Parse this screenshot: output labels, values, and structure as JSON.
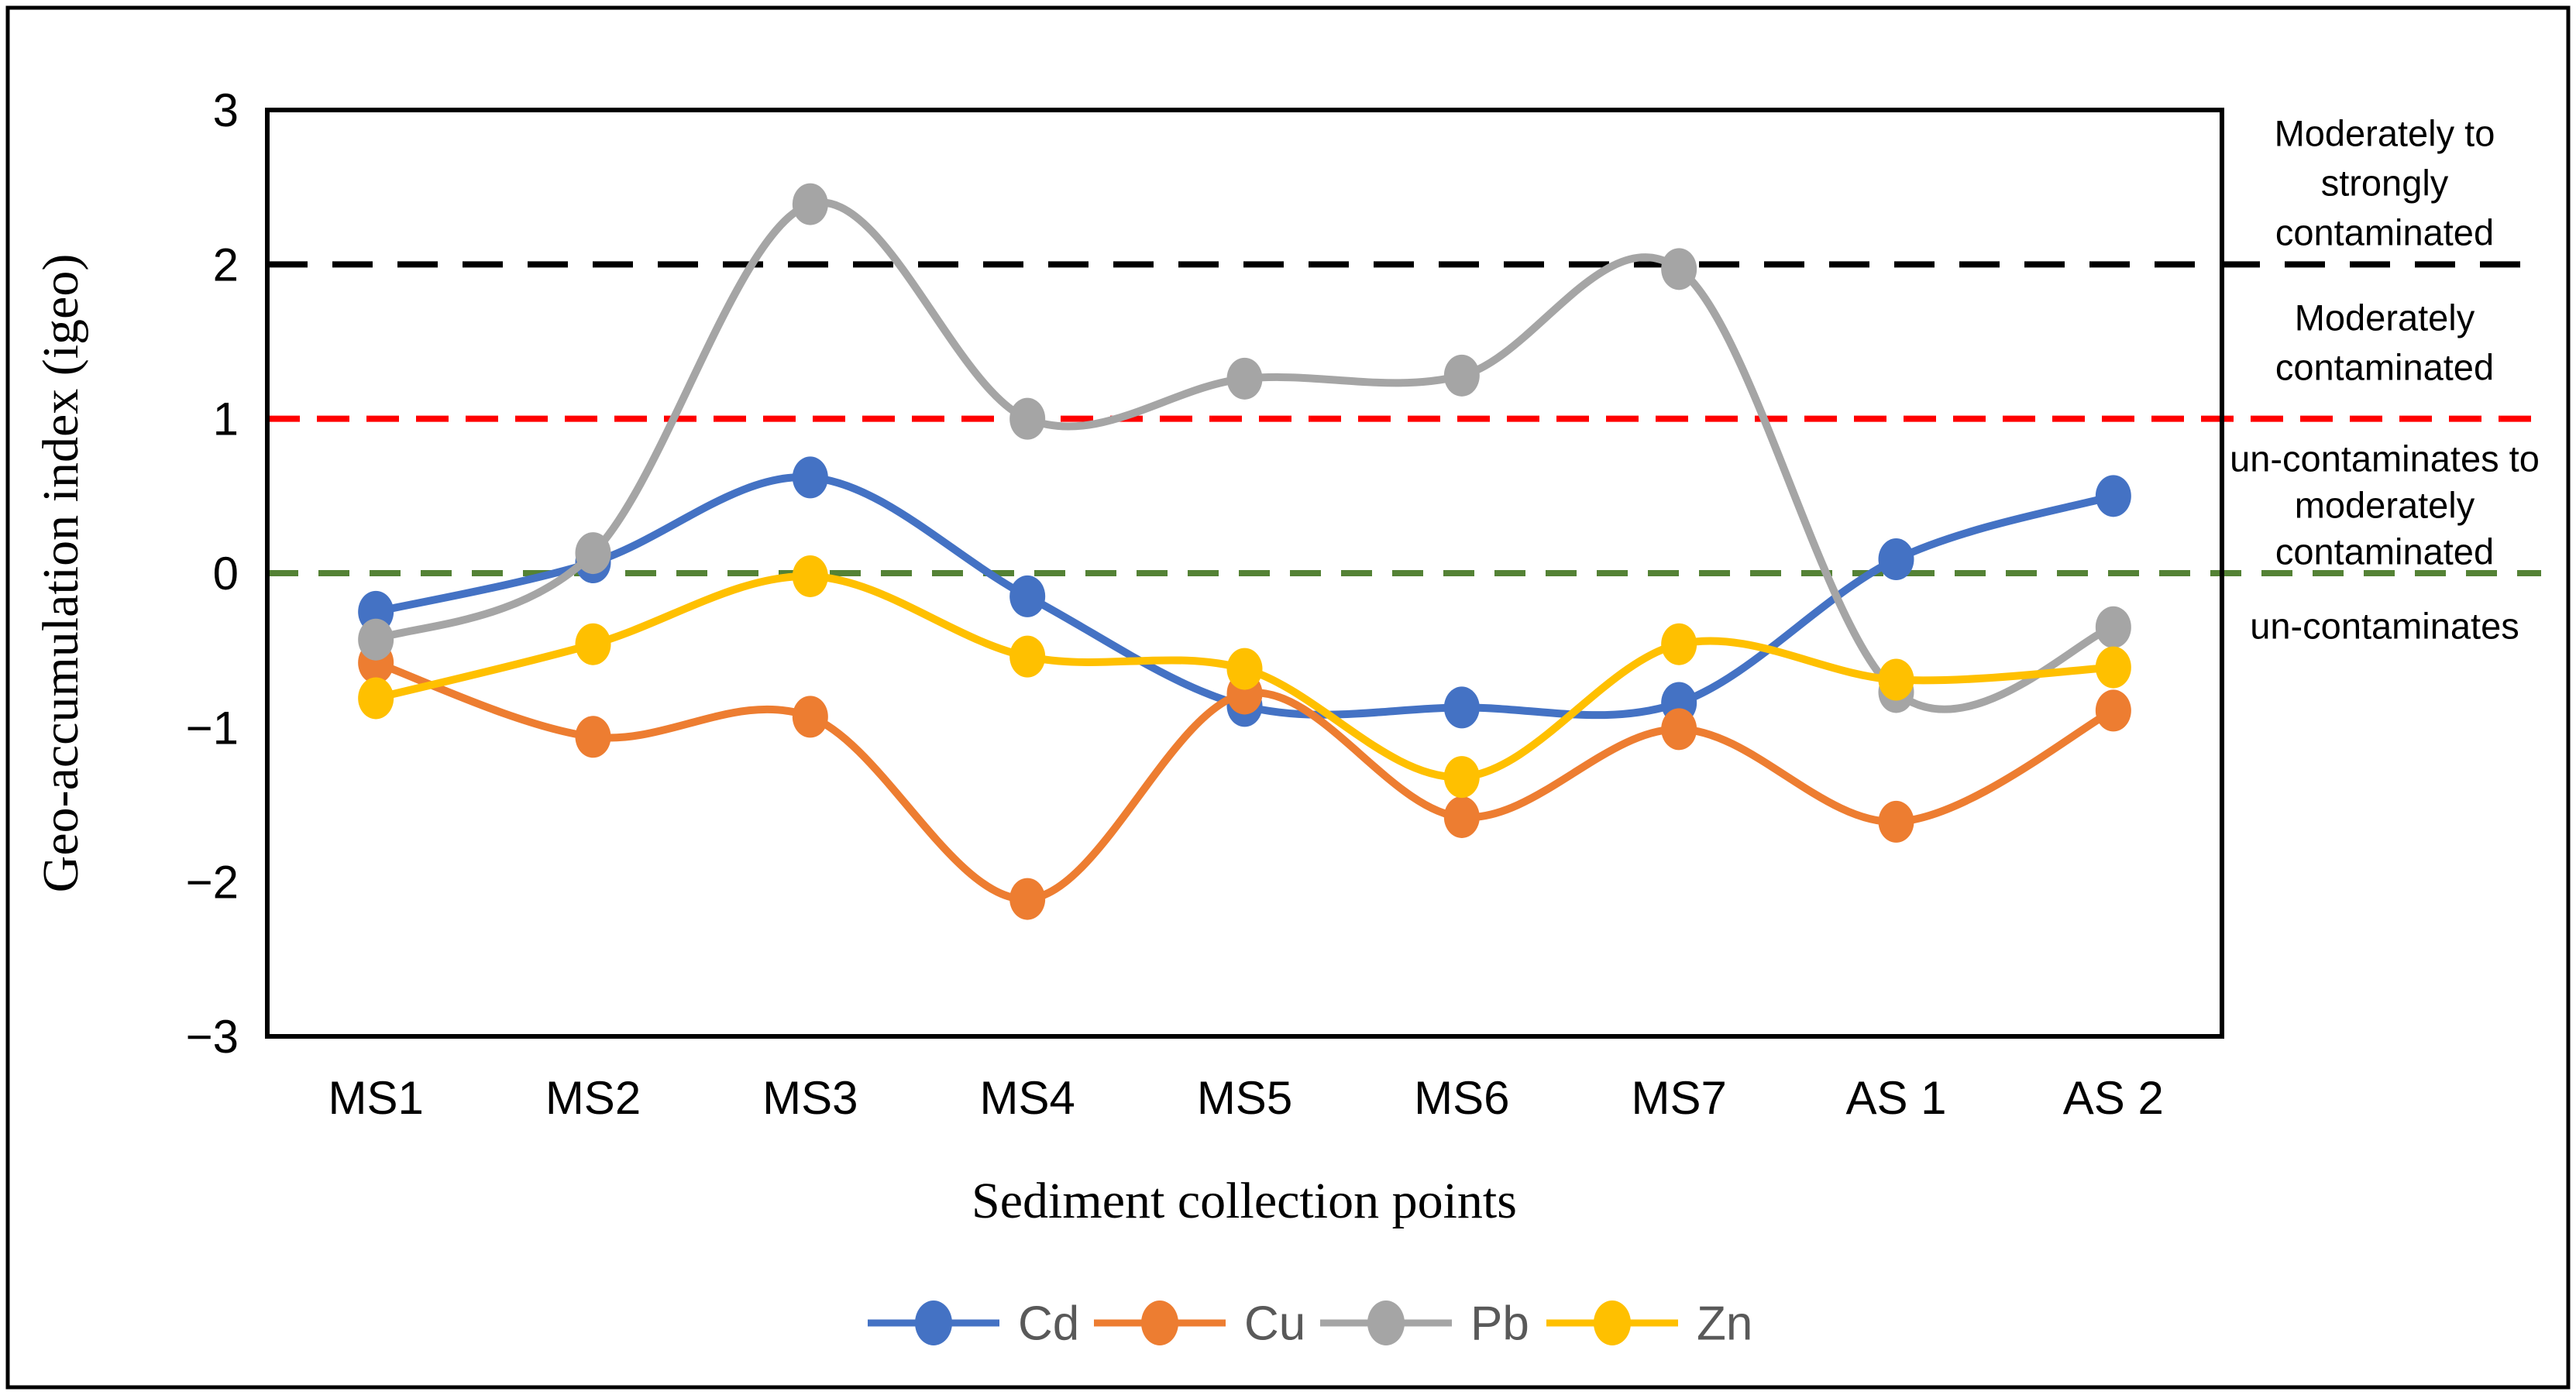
{
  "chart_data": {
    "type": "line",
    "title": "",
    "xlabel": "Sediment collection points",
    "ylabel": "Geo-accumulation index (igeo)",
    "ylim": [
      -3,
      3
    ],
    "yticks": [
      3,
      2,
      1,
      0,
      -1,
      -2,
      -3
    ],
    "ytick_labels": [
      "3",
      "2",
      "1",
      "0",
      "−1",
      "−2",
      "−3"
    ],
    "categories": [
      "MS1",
      "MS2",
      "MS3",
      "MS4",
      "MS5",
      "MS6",
      "MS7",
      "AS 1",
      "AS 2"
    ],
    "series": [
      {
        "name": "Cd",
        "color": "#4472C4",
        "values": [
          -0.25,
          0.07,
          0.62,
          -0.15,
          -0.86,
          -0.87,
          -0.84,
          0.09,
          0.5
        ]
      },
      {
        "name": "Cu",
        "color": "#ED7D31",
        "values": [
          -0.58,
          -1.06,
          -0.93,
          -2.11,
          -0.78,
          -1.58,
          -1.01,
          -1.61,
          -0.89
        ]
      },
      {
        "name": "Pb",
        "color": "#A5A5A5",
        "values": [
          -0.43,
          0.13,
          2.39,
          1.0,
          1.26,
          1.28,
          1.97,
          -0.77,
          -0.35
        ]
      },
      {
        "name": "Zn",
        "color": "#FFC000",
        "values": [
          -0.81,
          -0.46,
          -0.02,
          -0.54,
          -0.62,
          -1.32,
          -0.46,
          -0.69,
          -0.61
        ]
      }
    ],
    "reference_lines": [
      {
        "value": 2,
        "color": "#000000",
        "style": "dashed"
      },
      {
        "value": 1,
        "color": "#FF0000",
        "style": "dashed"
      },
      {
        "value": 0,
        "color": "#548235",
        "style": "dashed"
      }
    ],
    "zone_labels": [
      {
        "lines": [
          "Moderately to",
          "strongly",
          "contaminated"
        ]
      },
      {
        "lines": [
          "Moderately",
          "contaminated"
        ]
      },
      {
        "lines": [
          "un-contaminates to",
          "moderately",
          "contaminated"
        ]
      },
      {
        "lines": [
          "un-contaminates"
        ]
      }
    ],
    "legend": {
      "position": "bottom",
      "entries": [
        "Cd",
        "Cu",
        "Pb",
        "Zn"
      ]
    },
    "grid": "off",
    "text_colors": {
      "ticks": "#000000",
      "legend": "#595959",
      "zones": "#000000"
    }
  }
}
